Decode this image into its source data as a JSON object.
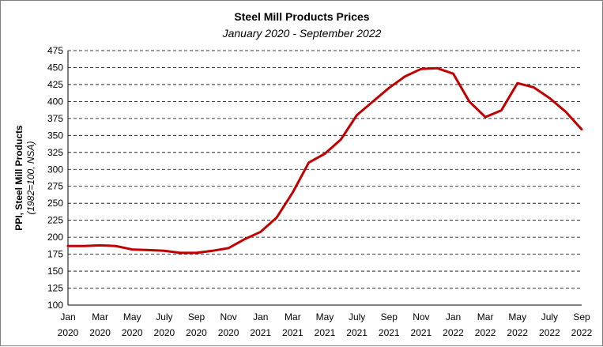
{
  "chart_data": {
    "type": "line",
    "title": "Steel Mill Products Prices",
    "subtitle": "January 2020 - September 2022",
    "ylabel": "PPI, Steel Mill Products",
    "ylabel_note": "(1982=100, NSA)",
    "ylim": [
      100,
      475
    ],
    "yticks": [
      100,
      125,
      150,
      175,
      200,
      225,
      250,
      275,
      300,
      325,
      350,
      375,
      400,
      425,
      450,
      475
    ],
    "grid": true,
    "line_color": "#C00000",
    "x_labels": [
      {
        "month": "Jan",
        "year": "2020",
        "index": 0
      },
      {
        "month": "Mar",
        "year": "2020",
        "index": 2
      },
      {
        "month": "May",
        "year": "2020",
        "index": 4
      },
      {
        "month": "July",
        "year": "2020",
        "index": 6
      },
      {
        "month": "Sep",
        "year": "2020",
        "index": 8
      },
      {
        "month": "Nov",
        "year": "2020",
        "index": 10
      },
      {
        "month": "Jan",
        "year": "2021",
        "index": 12
      },
      {
        "month": "Mar",
        "year": "2021",
        "index": 14
      },
      {
        "month": "May",
        "year": "2021",
        "index": 16
      },
      {
        "month": "July",
        "year": "2021",
        "index": 18
      },
      {
        "month": "Sep",
        "year": "2021",
        "index": 20
      },
      {
        "month": "Nov",
        "year": "2021",
        "index": 22
      },
      {
        "month": "Jan",
        "year": "2022",
        "index": 24
      },
      {
        "month": "Mar",
        "year": "2022",
        "index": 26
      },
      {
        "month": "May",
        "year": "2022",
        "index": 28
      },
      {
        "month": "July",
        "year": "2022",
        "index": 30
      },
      {
        "month": "Sep",
        "year": "2022",
        "index": 32
      }
    ],
    "series": [
      {
        "values": [
          187,
          187,
          188,
          187,
          182,
          181,
          180,
          177,
          177,
          180,
          184,
          197,
          208,
          229,
          266,
          310,
          323,
          344,
          380,
          400,
          420,
          437,
          448,
          449,
          441,
          400,
          377,
          387,
          427,
          421,
          405,
          385,
          359
        ]
      }
    ]
  }
}
